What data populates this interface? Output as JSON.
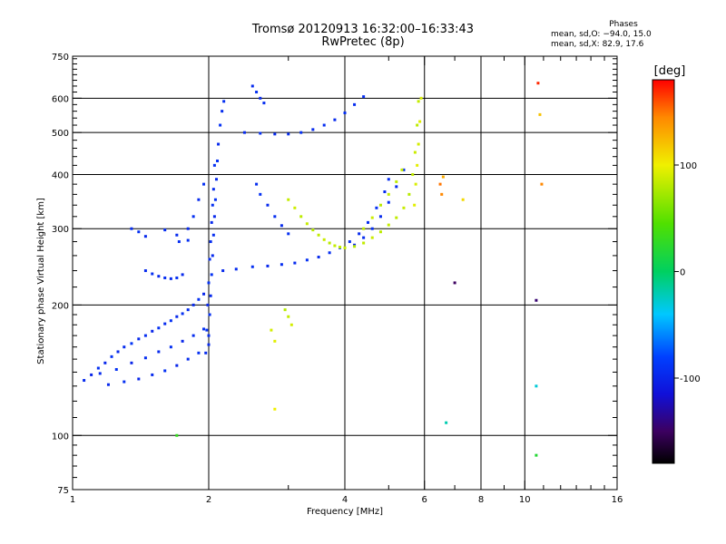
{
  "header": {
    "title_line1": "Tromsø 20120913 16:32:00–16:33:43",
    "title_line2": "RwPretec (8p)",
    "stats_title": "Phases",
    "stats_line1": "mean, sd,O:  −94.0, 15.0",
    "stats_line2": "mean, sd,X:   82.9, 17.6"
  },
  "chart_data": {
    "type": "scatter",
    "title": "Tromsø 20120913 16:32:00–16:33:43",
    "subtitle": "RwPretec (8p)",
    "xlabel": "Frequency [MHz]",
    "ylabel": "Stationary phase Virtual Height [km]",
    "x_scale": "log",
    "y_scale": "log",
    "xlim": [
      1,
      16
    ],
    "ylim": [
      75,
      750
    ],
    "x_ticks": [
      1,
      2,
      4,
      6,
      8,
      10,
      16
    ],
    "x_tick_labels": [
      "1",
      "2",
      "4",
      "6",
      "8",
      "10",
      "16"
    ],
    "y_ticks": [
      75,
      100,
      200,
      300,
      400,
      500,
      600,
      750
    ],
    "y_tick_labels": [
      "75",
      "100",
      "200",
      "300",
      "400",
      "500",
      "600",
      "750"
    ],
    "grid": true,
    "colorbar": {
      "label": "[deg]",
      "range": [
        -180,
        180
      ],
      "ticks": [
        -100,
        0,
        100
      ],
      "tick_labels": [
        "-100",
        "0",
        "100"
      ],
      "stops": [
        {
          "v": -180,
          "c": "#000000"
        },
        {
          "v": -150,
          "c": "#3c0060"
        },
        {
          "v": -115,
          "c": "#1010d8"
        },
        {
          "v": -80,
          "c": "#0040ff"
        },
        {
          "v": -40,
          "c": "#00c8ff"
        },
        {
          "v": 0,
          "c": "#00d060"
        },
        {
          "v": 45,
          "c": "#50e000"
        },
        {
          "v": 100,
          "c": "#f0f000"
        },
        {
          "v": 145,
          "c": "#ff8800"
        },
        {
          "v": 180,
          "c": "#ff0000"
        }
      ]
    },
    "series": [
      {
        "mode": "O",
        "points": [
          [
            1.06,
            134,
            -95
          ],
          [
            1.1,
            138,
            -100
          ],
          [
            1.14,
            143,
            -92
          ],
          [
            1.18,
            147,
            -98
          ],
          [
            1.22,
            152,
            -90
          ],
          [
            1.26,
            156,
            -97
          ],
          [
            1.3,
            160,
            -94
          ],
          [
            1.35,
            163,
            -88
          ],
          [
            1.4,
            167,
            -96
          ],
          [
            1.45,
            170,
            -93
          ],
          [
            1.5,
            174,
            -99
          ],
          [
            1.55,
            177,
            -91
          ],
          [
            1.6,
            181,
            -95
          ],
          [
            1.65,
            184,
            -90
          ],
          [
            1.7,
            188,
            -97
          ],
          [
            1.75,
            191,
            -92
          ],
          [
            1.8,
            195,
            -94
          ],
          [
            1.85,
            200,
            -96
          ],
          [
            1.9,
            206,
            -91
          ],
          [
            1.95,
            212,
            -98
          ],
          [
            1.15,
            139,
            -95
          ],
          [
            1.25,
            142,
            -90
          ],
          [
            1.35,
            147,
            -100
          ],
          [
            1.45,
            151,
            -93
          ],
          [
            1.55,
            156,
            -96
          ],
          [
            1.65,
            160,
            -92
          ],
          [
            1.75,
            165,
            -98
          ],
          [
            1.85,
            170,
            -94
          ],
          [
            1.95,
            176,
            -90
          ],
          [
            1.2,
            131,
            -97
          ],
          [
            1.3,
            133,
            -92
          ],
          [
            1.4,
            135,
            -98
          ],
          [
            1.5,
            138,
            -95
          ],
          [
            1.6,
            141,
            -91
          ],
          [
            1.7,
            145,
            -99
          ],
          [
            1.8,
            150,
            -94
          ],
          [
            1.9,
            155,
            -92
          ],
          [
            2.0,
            162,
            -96
          ],
          [
            2.0,
            170,
            -94
          ],
          [
            2.01,
            190,
            -92
          ],
          [
            2.02,
            210,
            -96
          ],
          [
            2.03,
            235,
            -90
          ],
          [
            2.04,
            260,
            -95
          ],
          [
            2.05,
            290,
            -93
          ],
          [
            2.06,
            320,
            -97
          ],
          [
            2.07,
            350,
            -91
          ],
          [
            2.08,
            390,
            -95
          ],
          [
            2.09,
            430,
            -92
          ],
          [
            2.1,
            470,
            -96
          ],
          [
            2.12,
            520,
            -90
          ],
          [
            2.14,
            560,
            -94
          ],
          [
            2.16,
            590,
            -92
          ],
          [
            1.97,
            155,
            -95
          ],
          [
            1.98,
            175,
            -92
          ],
          [
            1.99,
            200,
            -97
          ],
          [
            2.0,
            225,
            -90
          ],
          [
            2.01,
            255,
            -94
          ],
          [
            2.02,
            280,
            -93
          ],
          [
            2.03,
            310,
            -96
          ],
          [
            2.04,
            340,
            -92
          ],
          [
            2.05,
            370,
            -95
          ],
          [
            2.06,
            420,
            -91
          ],
          [
            2.15,
            240,
            -96
          ],
          [
            2.3,
            242,
            -94
          ],
          [
            2.5,
            245,
            -92
          ],
          [
            2.7,
            246,
            -97
          ],
          [
            2.9,
            248,
            -93
          ],
          [
            3.1,
            250,
            -95
          ],
          [
            3.3,
            254,
            -91
          ],
          [
            3.5,
            258,
            -96
          ],
          [
            3.7,
            264,
            -93
          ],
          [
            3.9,
            271,
            -95
          ],
          [
            4.1,
            280,
            -92
          ],
          [
            4.3,
            292,
            -96
          ],
          [
            4.5,
            310,
            -94
          ],
          [
            4.7,
            335,
            -91
          ],
          [
            4.9,
            365,
            -95
          ],
          [
            5.0,
            390,
            -93
          ],
          [
            4.2,
            275,
            -98
          ],
          [
            4.4,
            286,
            -94
          ],
          [
            4.6,
            300,
            -92
          ],
          [
            4.8,
            320,
            -96
          ],
          [
            5.0,
            345,
            -93
          ],
          [
            5.2,
            375,
            -95
          ],
          [
            5.4,
            410,
            -91
          ],
          [
            2.4,
            500,
            -95
          ],
          [
            2.6,
            498,
            -92
          ],
          [
            2.8,
            496,
            -96
          ],
          [
            3.0,
            496,
            -94
          ],
          [
            3.2,
            500,
            -91
          ],
          [
            3.4,
            508,
            -95
          ],
          [
            3.6,
            520,
            -93
          ],
          [
            3.8,
            535,
            -96
          ],
          [
            4.0,
            555,
            -92
          ],
          [
            4.2,
            580,
            -94
          ],
          [
            4.4,
            605,
            -93
          ],
          [
            2.5,
            640,
            -95
          ],
          [
            2.55,
            620,
            -92
          ],
          [
            2.6,
            600,
            -96
          ],
          [
            2.65,
            585,
            -93
          ],
          [
            1.45,
            240,
            -95
          ],
          [
            1.5,
            236,
            -92
          ],
          [
            1.55,
            233,
            -97
          ],
          [
            1.6,
            231,
            -93
          ],
          [
            1.65,
            230,
            -95
          ],
          [
            1.7,
            231,
            -91
          ],
          [
            1.75,
            235,
            -96
          ],
          [
            1.35,
            300,
            -94
          ],
          [
            1.4,
            295,
            -92
          ],
          [
            1.45,
            288,
            -96
          ],
          [
            1.6,
            298,
            -93
          ],
          [
            1.7,
            290,
            -95
          ],
          [
            1.8,
            282,
            -92
          ],
          [
            2.55,
            380,
            -94
          ],
          [
            2.6,
            360,
            -91
          ],
          [
            2.7,
            340,
            -96
          ],
          [
            2.8,
            320,
            -93
          ],
          [
            2.9,
            305,
            -95
          ],
          [
            3.0,
            292,
            -92
          ],
          [
            1.72,
            280,
            -93
          ],
          [
            1.8,
            300,
            -96
          ],
          [
            1.85,
            320,
            -92
          ],
          [
            1.9,
            350,
            -95
          ],
          [
            1.95,
            380,
            -91
          ],
          [
            7.0,
            225,
            -150
          ],
          [
            10.6,
            205,
            -145
          ]
        ]
      },
      {
        "mode": "X",
        "points": [
          [
            3.0,
            350,
            85
          ],
          [
            3.1,
            335,
            88
          ],
          [
            3.2,
            320,
            82
          ],
          [
            3.3,
            308,
            86
          ],
          [
            3.4,
            298,
            80
          ],
          [
            3.5,
            290,
            84
          ],
          [
            3.6,
            283,
            87
          ],
          [
            3.7,
            278,
            81
          ],
          [
            3.8,
            274,
            85
          ],
          [
            3.9,
            272,
            83
          ],
          [
            4.0,
            271,
            86
          ],
          [
            4.2,
            273,
            80
          ],
          [
            4.4,
            278,
            84
          ],
          [
            4.6,
            286,
            87
          ],
          [
            4.8,
            295,
            82
          ],
          [
            5.0,
            306,
            85
          ],
          [
            5.2,
            318,
            83
          ],
          [
            5.4,
            335,
            86
          ],
          [
            5.55,
            360,
            80
          ],
          [
            5.65,
            400,
            84
          ],
          [
            5.72,
            450,
            87
          ],
          [
            5.78,
            520,
            82
          ],
          [
            5.82,
            590,
            85
          ],
          [
            5.7,
            340,
            95
          ],
          [
            5.74,
            380,
            92
          ],
          [
            5.78,
            420,
            96
          ],
          [
            5.82,
            470,
            90
          ],
          [
            5.86,
            530,
            94
          ],
          [
            5.9,
            600,
            92
          ],
          [
            4.4,
            300,
            83
          ],
          [
            4.6,
            318,
            87
          ],
          [
            4.8,
            340,
            81
          ],
          [
            5.0,
            360,
            85
          ],
          [
            5.2,
            385,
            83
          ],
          [
            5.35,
            410,
            86
          ],
          [
            6.5,
            380,
            150
          ],
          [
            6.55,
            360,
            145
          ],
          [
            6.6,
            395,
            130
          ],
          [
            7.3,
            350,
            110
          ],
          [
            10.7,
            650,
            170
          ],
          [
            10.8,
            550,
            120
          ],
          [
            10.9,
            380,
            145
          ],
          [
            2.95,
            195,
            80
          ],
          [
            3.0,
            188,
            85
          ],
          [
            3.05,
            180,
            90
          ],
          [
            2.8,
            165,
            95
          ],
          [
            2.75,
            175,
            90
          ],
          [
            2.8,
            115,
            100
          ],
          [
            10.6,
            90,
            20
          ],
          [
            10.6,
            130,
            -30
          ],
          [
            6.7,
            107,
            -20
          ],
          [
            1.7,
            100,
            30
          ]
        ]
      }
    ]
  }
}
